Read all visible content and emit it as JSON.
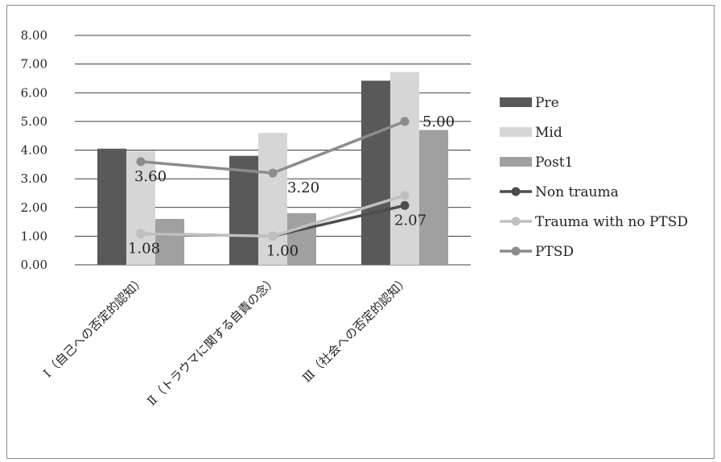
{
  "chart_data": {
    "type": "bar",
    "categories": [
      "Ⅰ（自己への否定的認知）",
      "Ⅱ（トラウマに関する自責の念）",
      "Ⅲ（社会への否定的認知）"
    ],
    "ylim": [
      0,
      8
    ],
    "yticks": [
      "0.00",
      "1.00",
      "2.00",
      "3.00",
      "4.00",
      "5.00",
      "6.00",
      "7.00",
      "8.00"
    ],
    "grid": true,
    "legend_position": "right",
    "bar_series": [
      {
        "name": "Pre",
        "color": "#595959",
        "values": [
          4.05,
          3.8,
          6.42
        ]
      },
      {
        "name": "Mid",
        "color": "#d6d6d6",
        "values": [
          3.98,
          4.6,
          6.72
        ]
      },
      {
        "name": "Post1",
        "color": "#a0a0a0",
        "values": [
          1.6,
          1.8,
          4.7
        ]
      }
    ],
    "line_series": [
      {
        "name": "Non trauma",
        "color": "#4d4d4d",
        "values": [
          1.08,
          1.0,
          2.07
        ]
      },
      {
        "name": "Trauma with no PTSD",
        "color": "#c0c0c0",
        "values": [
          1.08,
          1.0,
          2.42
        ]
      },
      {
        "name": "PTSD",
        "color": "#8c8c8c",
        "values": [
          3.6,
          3.2,
          5.0
        ]
      }
    ],
    "data_labels": [
      {
        "series": "PTSD",
        "index": 0,
        "text": "3.60"
      },
      {
        "series": "PTSD",
        "index": 1,
        "text": "3.20"
      },
      {
        "series": "PTSD",
        "index": 2,
        "text": "5.00"
      },
      {
        "series": "Non trauma",
        "index": 0,
        "text": "1.08"
      },
      {
        "series": "Non trauma",
        "index": 1,
        "text": "1.00"
      },
      {
        "series": "Non trauma",
        "index": 2,
        "text": "2.07"
      }
    ]
  }
}
